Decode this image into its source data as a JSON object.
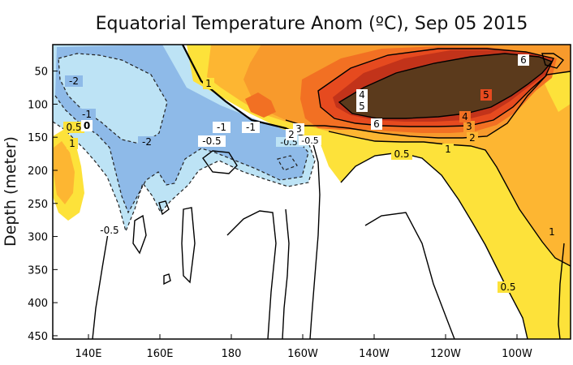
{
  "chart_data": {
    "type": "contour",
    "title": "Equatorial Temperature Anom (ºC), Sep 05 2015",
    "xlabel": "",
    "ylabel": "Depth (meter)",
    "x_ticks": [
      "140E",
      "160E",
      "180",
      "160W",
      "140W",
      "120W",
      "100W"
    ],
    "x_tick_longitudes": [
      140,
      160,
      180,
      200,
      220,
      240,
      260
    ],
    "xlim": [
      130,
      275
    ],
    "y_ticks": [
      50,
      100,
      150,
      200,
      250,
      300,
      350,
      400,
      450
    ],
    "ylim": [
      10,
      455
    ],
    "y_inverted": true,
    "grid": false,
    "colors": {
      "neg_strong": "#8ebae8",
      "neg_weak": "#bde3f5",
      "pos_05": "#fde23a",
      "pos_1": "#fdb632",
      "pos_2": "#f89a2c",
      "pos_3": "#f27023",
      "pos_4": "#e64a1f",
      "pos_5": "#c2331a",
      "pos_6": "#5b3a1c"
    },
    "contour_levels": [
      -2,
      -1,
      -0.5,
      0.5,
      1,
      2,
      3,
      4,
      5,
      6
    ],
    "contour_labels": [
      "-2",
      "-1",
      "-0.5",
      "0.5",
      "1",
      "2",
      "3",
      "4",
      "5",
      "6",
      "0"
    ],
    "max_anomaly": 6,
    "max_location": {
      "lon_range": [
        "140W",
        "100W"
      ],
      "depth_range": [
        50,
        150
      ]
    },
    "min_anomaly": -2,
    "min_location": {
      "lon_range": [
        "140E",
        "180"
      ],
      "depth_range": [
        60,
        180
      ]
    }
  }
}
